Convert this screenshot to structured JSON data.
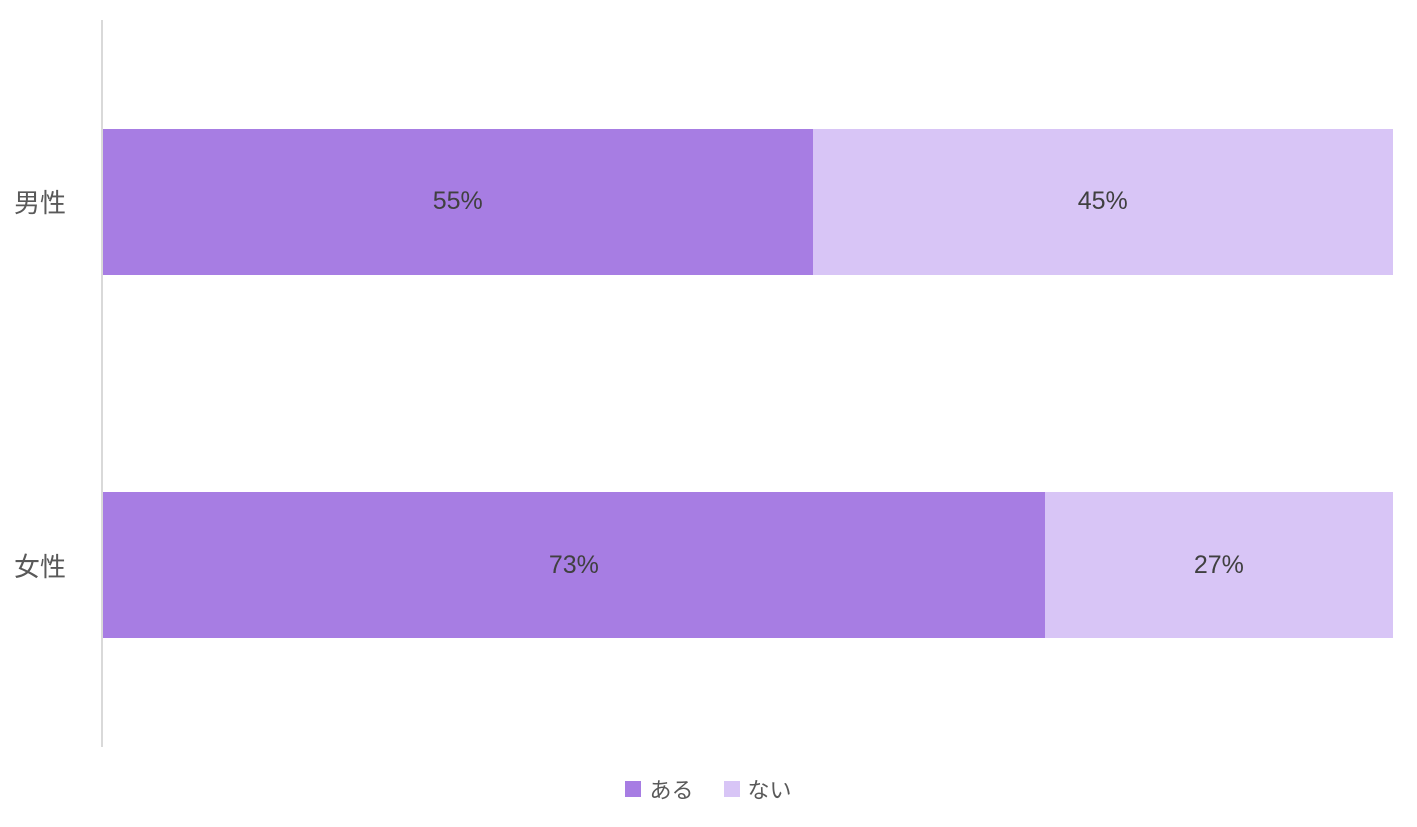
{
  "chart_data": {
    "type": "bar",
    "orientation": "horizontal",
    "stacked": true,
    "title": "",
    "xlabel": "",
    "ylabel": "",
    "xlim": [
      0,
      100
    ],
    "grid": false,
    "legend_position": "bottom",
    "categories": [
      "男性",
      "女性"
    ],
    "series": [
      {
        "name": "ある",
        "color": "#a77de3",
        "values": [
          55,
          73
        ]
      },
      {
        "name": "ない",
        "color": "#d8c5f6",
        "values": [
          45,
          27
        ]
      }
    ],
    "data_labels": [
      [
        "55%",
        "45%"
      ],
      [
        "73%",
        "27%"
      ]
    ],
    "value_suffix": "%",
    "colors": {
      "axis_line": "#d9d9d9",
      "category_label": "#595959",
      "data_label": "#404040",
      "legend_label": "#595959",
      "background": "#ffffff"
    }
  }
}
